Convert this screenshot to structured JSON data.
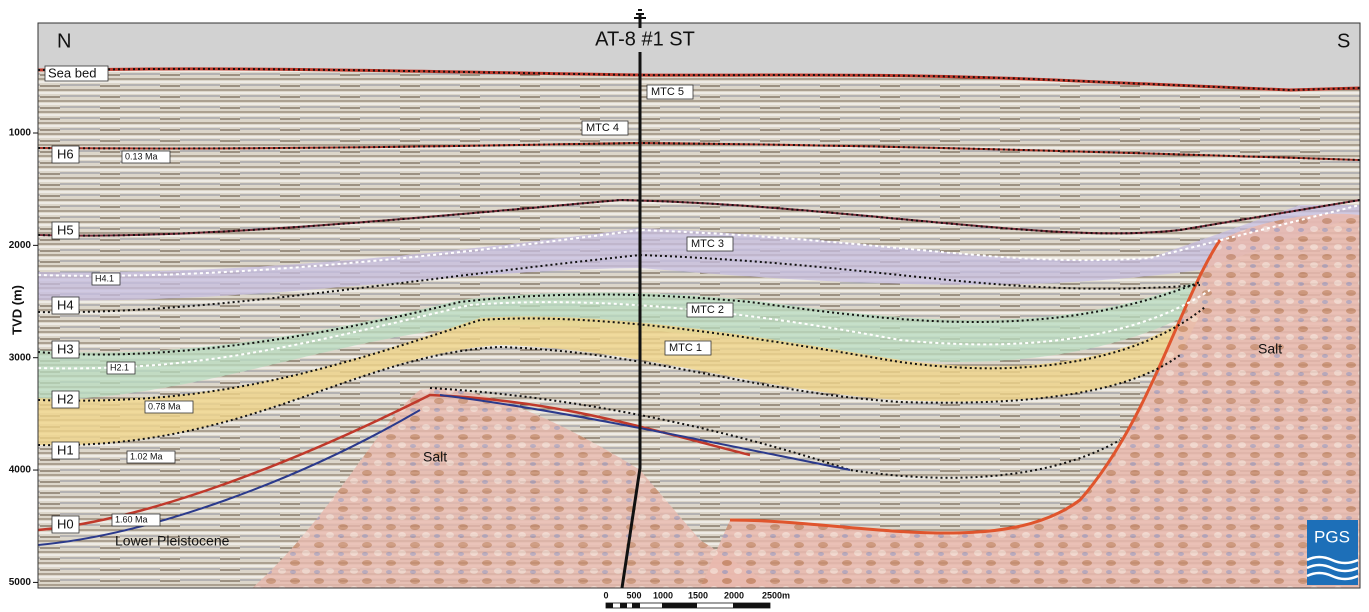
{
  "header": {
    "left_direction": "N",
    "right_direction": "S",
    "well": "AT-8 #1 ST"
  },
  "depth_axis": {
    "label": "TVD (m)",
    "ticks": [
      1000,
      2000,
      3000,
      4000,
      5000
    ]
  },
  "horizons": [
    {
      "label": "Sea bed"
    },
    {
      "label": "H6",
      "age": "0.13 Ma"
    },
    {
      "label": "H5"
    },
    {
      "label": "H4.1"
    },
    {
      "label": "H4"
    },
    {
      "label": "H3"
    },
    {
      "label": "H2.1"
    },
    {
      "label": "H2",
      "age": "0.78 Ma"
    },
    {
      "label": "H1",
      "age": "1.02 Ma"
    },
    {
      "label": "H0",
      "age": "1.60 Ma"
    }
  ],
  "units": [
    "MTC 5",
    "MTC 4",
    "MTC 3",
    "MTC 2",
    "MTC 1",
    "Salt",
    "Salt",
    "Lower Pleistocene"
  ],
  "scale_bar": {
    "labels": [
      "0",
      "500",
      "1000",
      "1500",
      "2000",
      "2500m"
    ]
  },
  "logo": "PGS"
}
